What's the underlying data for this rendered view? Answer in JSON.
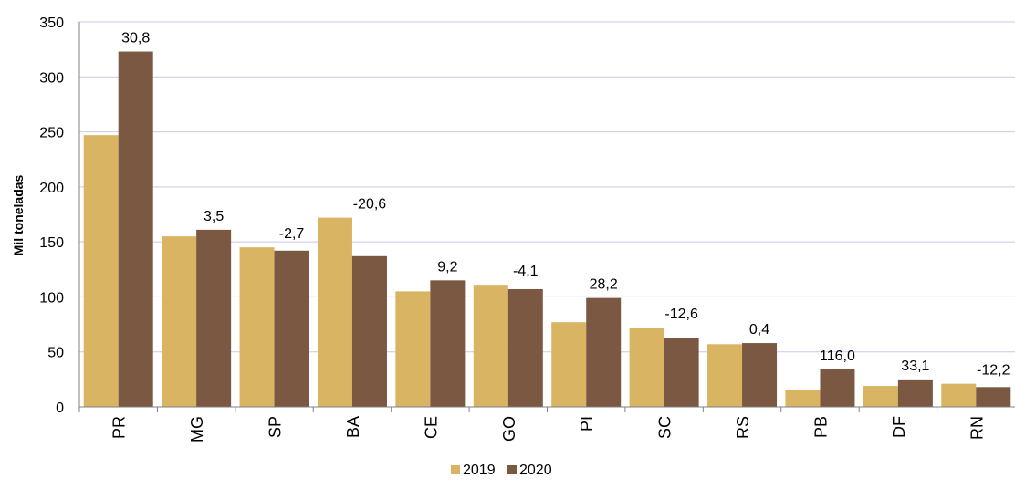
{
  "chart_data": {
    "type": "bar",
    "ylabel": "Mil toneladas",
    "ylim": [
      0,
      350
    ],
    "yticks": [
      0,
      50,
      100,
      150,
      200,
      250,
      300,
      350
    ],
    "grid": true,
    "legend_position": "bottom",
    "categories": [
      "PR",
      "MG",
      "SP",
      "BA",
      "CE",
      "GO",
      "PI",
      "SC",
      "RS",
      "PB",
      "DF",
      "RN"
    ],
    "series": [
      {
        "name": "2019",
        "color": "#D9B463",
        "values": [
          247,
          155,
          145,
          172,
          105,
          111,
          77,
          72,
          57,
          15,
          19,
          21
        ]
      },
      {
        "name": "2020",
        "color": "#7B5841",
        "values": [
          323,
          161,
          142,
          137,
          115,
          107,
          99,
          63,
          58,
          34,
          25,
          18
        ]
      }
    ],
    "data_labels": [
      "30,8",
      "3,5",
      "-2,7",
      "-20,6",
      "9,2",
      "-4,1",
      "28,2",
      "-12,6",
      "0,4",
      "116,0",
      "33,1",
      "-12,2"
    ]
  }
}
